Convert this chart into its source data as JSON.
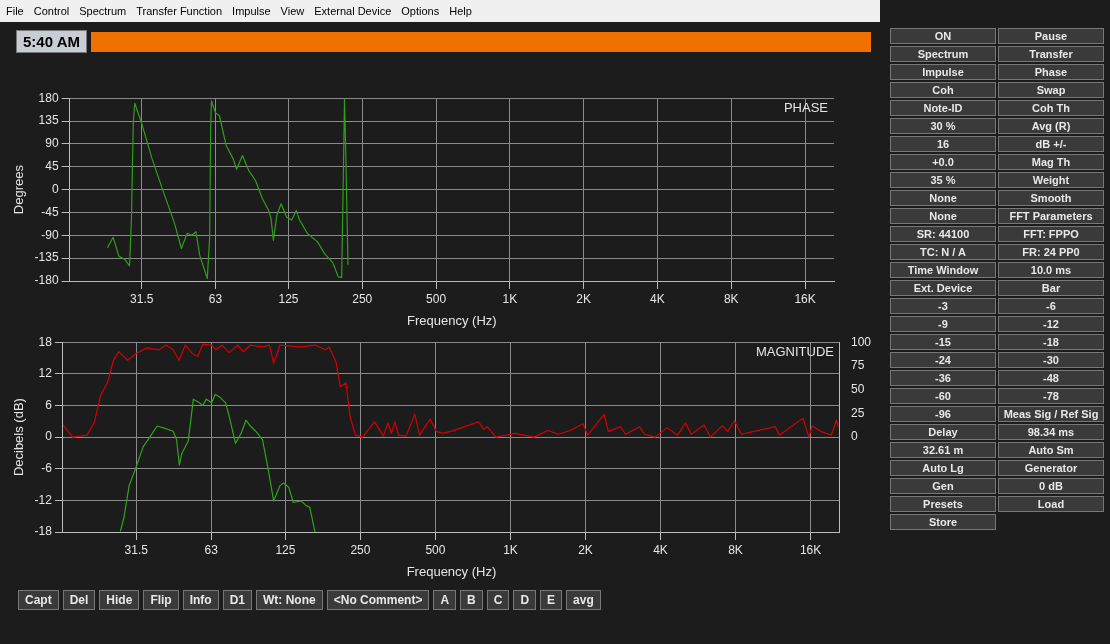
{
  "chart_data": [
    {
      "type": "line",
      "title": "PHASE",
      "xlabel": "Frequency (Hz)",
      "ylabel": "Degrees",
      "log": "x",
      "grid": true,
      "marker": "none",
      "line_style": "solid",
      "xlim": [
        16,
        21000
      ],
      "xticks": [
        31.5,
        63,
        125,
        250,
        500,
        {
          "value": 1000,
          "label": "1K"
        },
        {
          "value": 2000,
          "label": "2K"
        },
        {
          "value": 4000,
          "label": "4K"
        },
        {
          "value": 8000,
          "label": "8K"
        },
        {
          "value": 16000,
          "label": "16K"
        }
      ],
      "ylim": [
        -180,
        180
      ],
      "yticks": [
        180,
        135,
        90,
        45,
        0,
        -45,
        -90,
        -135,
        -180
      ],
      "series": [
        {
          "color": "#2f9e1a",
          "x": [
            22.8,
            24.1,
            25.4,
            26.8,
            28.1,
            28.6,
            29.1,
            29.5,
            31.5,
            34.7,
            38.2,
            42.9,
            45.7,
            48.3,
            50.4,
            52.4,
            54.3,
            58.3,
            59.6,
            60.2,
            60.6,
            63,
            65.3,
            69.6,
            74.3,
            76.8,
            81.1,
            86,
            91.7,
            97.9,
            103.8,
            106.1,
            108.5,
            112.1,
            116.6,
            122.8,
            128.9,
            134.4,
            138.8,
            149.1,
            164.3,
            175.4,
            190,
            199.6,
            206,
            208.8,
            211.6,
            214.3,
            218.6
          ],
          "values": [
            -115,
            -94,
            -131,
            -137,
            -150,
            -57,
            133,
            170,
            130,
            61,
            2,
            -67,
            -116,
            -86,
            -90,
            -83,
            -129,
            -175,
            -96,
            120,
            175,
            151,
            146,
            87,
            61,
            40,
            67,
            38,
            18,
            -18,
            -41,
            -57,
            -100,
            -50,
            -28,
            -54,
            -60,
            -41,
            -60,
            -86,
            -103,
            -126,
            -145,
            -172,
            -173,
            2,
            179,
            61,
            -148
          ]
        }
      ]
    },
    {
      "type": "line",
      "title": "MAGNITUDE",
      "xlabel": "Frequency (Hz)",
      "ylabel": "Decibels (dB)",
      "log": "x",
      "grid": true,
      "marker": "none",
      "line_style": "solid",
      "xlim": [
        16,
        21000
      ],
      "xticks": [
        31.5,
        63,
        125,
        250,
        500,
        {
          "value": 1000,
          "label": "1K"
        },
        {
          "value": 2000,
          "label": "2K"
        },
        {
          "value": 4000,
          "label": "4K"
        },
        {
          "value": 8000,
          "label": "8K"
        },
        {
          "value": 16000,
          "label": "16K"
        }
      ],
      "ylim": [
        -18,
        18
      ],
      "yticks": [
        18,
        12,
        6,
        0,
        -6,
        -12,
        -18
      ],
      "y2lim": [
        -100,
        100
      ],
      "y2ticks": [
        0,
        25,
        50,
        75,
        100
      ],
      "series": [
        {
          "color": "#d40000",
          "axis": "y2",
          "x": [
            16,
            17.5,
            20,
            21.4,
            22.6,
            24.2,
            25.5,
            26.8,
            29.1,
            31.5,
            34.7,
            38.9,
            41.5,
            44.3,
            46.8,
            49.6,
            52.9,
            55.5,
            58.3,
            63,
            65.8,
            69.6,
            74.3,
            80.6,
            84.6,
            90.4,
            101.1,
            107.9,
            112.1,
            118.9,
            144.3,
            164.3,
            181,
            187.1,
            199.6,
            207.5,
            218.6,
            227.1,
            238.4,
            254.5,
            285,
            309,
            322,
            333,
            344,
            355,
            381,
            413,
            432,
            476,
            504,
            535,
            576,
            745,
            782,
            807,
            874,
            1042,
            1242,
            1412,
            1554,
            1737,
            1956,
            2039,
            2376,
            2469,
            2761,
            2897,
            3292,
            3453,
            3800,
            4251,
            4679,
            5035,
            5315,
            5982,
            6337,
            7086,
            7433,
            7925,
            8444,
            11552,
            12000,
            14915,
            15748,
            16260,
            17612,
            19374,
            20333,
            20660
          ],
          "values": [
            13,
            0,
            2,
            16,
            43,
            58,
            81,
            90,
            81,
            88,
            94,
            92,
            97,
            92,
            81,
            97,
            88,
            85,
            98,
            97,
            92,
            97,
            89,
            97,
            90,
            97,
            95,
            97,
            78,
            97,
            95,
            97,
            92,
            95,
            79,
            53,
            57,
            22,
            2,
            0,
            16,
            1,
            15,
            4,
            16,
            2,
            1,
            24,
            2,
            19,
            6,
            4,
            6,
            16,
            8,
            11,
            0,
            4,
            0,
            7,
            3,
            7,
            14,
            2,
            24,
            6,
            11,
            3,
            11,
            3,
            0,
            10,
            2,
            15,
            3,
            13,
            0,
            12,
            6,
            17,
            3,
            11,
            2,
            20,
            0,
            12,
            6,
            2,
            18,
            11
          ]
        },
        {
          "color": "#2fa51a",
          "x": [
            27.2,
            28.1,
            29.5,
            31.5,
            33.6,
            35.8,
            38.2,
            40.8,
            44.3,
            45.7,
            46.9,
            48,
            50.9,
            53.4,
            56.4,
            58.3,
            60.2,
            63.2,
            65.3,
            68.5,
            71.9,
            74.3,
            78.8,
            83.2,
            86.8,
            90.4,
            96.3,
            101.1,
            106.1,
            112.1,
            118.9,
            122.8,
            128.9,
            134.4,
            144.3,
            151.5,
            156.5,
            164.3
          ],
          "values": [
            -17.9,
            -15.3,
            -9.2,
            -5.6,
            -1.8,
            0.1,
            2.1,
            1.7,
            1.1,
            -0.4,
            -5.3,
            -3.1,
            -0.8,
            7.2,
            6.5,
            6,
            7.2,
            6.5,
            8.1,
            7.5,
            6.5,
            4,
            -1.2,
            0.8,
            3.2,
            2.1,
            0.8,
            -0.5,
            -5.6,
            -12.1,
            -9.2,
            -8.7,
            -9.5,
            -12.4,
            -12.1,
            -13,
            -13.3,
            -18
          ]
        }
      ]
    },
    {
      "type": "other",
      "title": "5:40 AM",
      "annotations": [
        "File",
        "Control",
        "Spectrum",
        "Transfer Function",
        "Impulse",
        "View",
        "External Device",
        "Options",
        "Help"
      ]
    },
    {
      "type": "other",
      "annotations": [
        "ON",
        "Pause",
        "Spectrum",
        "Transfer",
        "Impulse",
        "Phase",
        "Coh",
        "Swap",
        "Note-ID",
        "Coh Th",
        "30 %",
        "Avg (R)",
        "16",
        "dB +/-",
        "+0.0",
        "Mag Th",
        "35 %",
        "Weight",
        "None",
        "Smooth",
        "None",
        "FFT Parameters",
        "SR: 44100",
        "FFT: FPPO",
        "TC: N / A",
        "FR: 24 PP0",
        "Time Window",
        "10.0 ms",
        "Ext. Device",
        "Bar",
        "-3",
        "-6",
        "-9",
        "-12",
        "-15",
        "-18",
        "-24",
        "-30",
        "-36",
        "-48",
        "-60",
        "-78",
        "-96",
        "Meas Sig / Ref Sig",
        "Delay",
        "98.34 ms",
        "32.61 m",
        "Auto Sm",
        "Auto Lg",
        "Generator",
        "Gen",
        "0 dB",
        "Presets",
        "Load",
        "Store"
      ]
    },
    {
      "type": "other",
      "annotations": [
        "Capt",
        "Del",
        "Hide",
        "Flip",
        "Info",
        "D1",
        "Wt: None",
        "<No Comment>",
        "A",
        "B",
        "C",
        "D",
        "E",
        "avg"
      ]
    }
  ]
}
